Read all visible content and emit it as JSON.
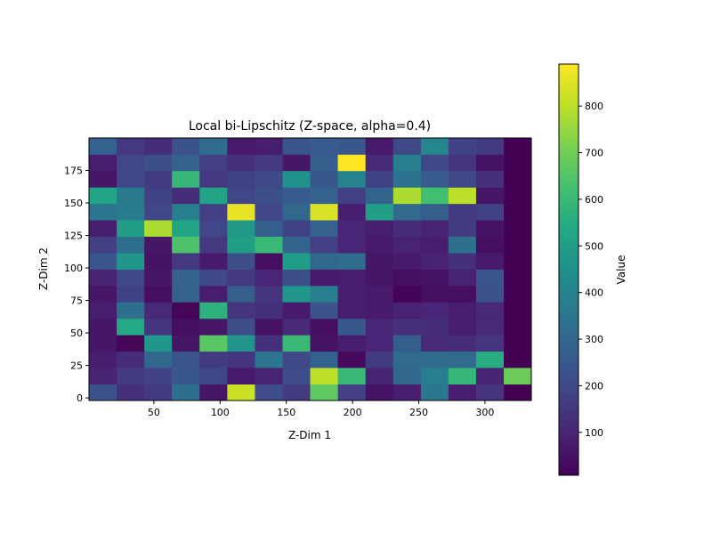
{
  "chart_data": {
    "type": "heatmap",
    "title": "Local bi-Lipschitz (Z-space, alpha=0.4)",
    "xlabel": "Z-Dim 1",
    "ylabel": "Z-Dim 2",
    "colorbar_label": "Value",
    "colormap": "viridis",
    "vmin": 8,
    "vmax": 890,
    "xlim": [
      1,
      335
    ],
    "ylim": [
      -2,
      200
    ],
    "x_bin_edges": [
      1,
      21.9,
      42.8,
      63.6,
      84.5,
      105.4,
      126.3,
      147.2,
      168,
      188.9,
      209.8,
      230.7,
      251.6,
      272.4,
      293.3,
      314.2,
      335
    ],
    "y_bin_edges": [
      -2,
      10.6,
      23.3,
      35.9,
      48.5,
      61.1,
      73.8,
      86.4,
      99,
      111.6,
      124.3,
      136.9,
      149.5,
      162.1,
      174.8,
      187.4,
      200
    ],
    "x_ticks": [
      50,
      100,
      150,
      200,
      250,
      300
    ],
    "y_ticks": [
      0,
      25,
      50,
      75,
      100,
      125,
      150,
      175
    ],
    "colorbar_ticks": [
      100,
      200,
      300,
      400,
      500,
      600,
      700,
      800
    ],
    "values": [
      [
        230,
        130,
        160,
        330,
        60,
        820,
        210,
        160,
        670,
        170,
        50,
        80,
        360,
        80,
        140,
        10
      ],
      [
        90,
        160,
        180,
        250,
        190,
        70,
        90,
        210,
        800,
        600,
        90,
        300,
        380,
        590,
        90,
        690
      ],
      [
        80,
        120,
        300,
        240,
        160,
        140,
        350,
        200,
        280,
        30,
        160,
        310,
        320,
        310,
        550,
        10
      ],
      [
        60,
        20,
        470,
        60,
        660,
        460,
        130,
        600,
        50,
        80,
        100,
        270,
        110,
        120,
        140,
        10
      ],
      [
        60,
        540,
        140,
        40,
        60,
        220,
        50,
        110,
        40,
        250,
        100,
        130,
        120,
        80,
        110,
        10
      ],
      [
        80,
        330,
        110,
        20,
        570,
        140,
        130,
        70,
        230,
        80,
        70,
        90,
        100,
        80,
        110,
        10
      ],
      [
        60,
        180,
        40,
        280,
        80,
        270,
        140,
        470,
        380,
        80,
        70,
        15,
        40,
        40,
        230,
        10
      ],
      [
        90,
        200,
        60,
        280,
        200,
        150,
        100,
        220,
        70,
        80,
        60,
        40,
        50,
        90,
        240,
        10
      ],
      [
        240,
        470,
        50,
        150,
        70,
        220,
        40,
        490,
        300,
        320,
        60,
        70,
        90,
        130,
        70,
        10
      ],
      [
        170,
        330,
        60,
        640,
        150,
        500,
        600,
        290,
        170,
        100,
        70,
        90,
        80,
        330,
        40,
        10
      ],
      [
        80,
        500,
        780,
        520,
        190,
        480,
        270,
        180,
        280,
        100,
        80,
        120,
        90,
        160,
        50,
        10
      ],
      [
        350,
        370,
        190,
        390,
        170,
        860,
        190,
        300,
        840,
        80,
        500,
        310,
        270,
        160,
        180,
        10
      ],
      [
        520,
        370,
        180,
        120,
        520,
        190,
        220,
        260,
        280,
        170,
        290,
        780,
        620,
        800,
        60,
        10
      ],
      [
        60,
        200,
        160,
        590,
        150,
        180,
        200,
        450,
        250,
        400,
        180,
        340,
        260,
        200,
        130,
        10
      ],
      [
        80,
        190,
        220,
        280,
        170,
        130,
        150,
        60,
        270,
        890,
        110,
        380,
        200,
        140,
        50,
        10
      ],
      [
        280,
        150,
        120,
        230,
        320,
        70,
        80,
        240,
        260,
        250,
        70,
        200,
        410,
        180,
        160,
        10
      ]
    ]
  }
}
